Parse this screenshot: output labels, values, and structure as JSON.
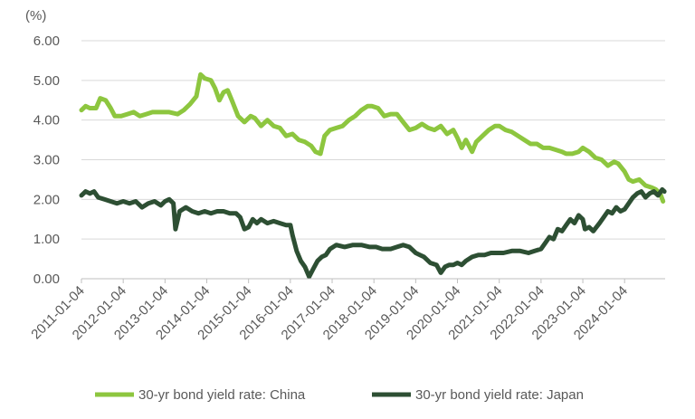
{
  "chart_data": {
    "type": "line",
    "title": "",
    "xlabel": "",
    "ylabel": "(%)",
    "ylim": [
      0,
      6
    ],
    "y_ticks": [
      "0.00",
      "1.00",
      "2.00",
      "3.00",
      "4.00",
      "5.00",
      "6.00"
    ],
    "x_range": [
      2011.0,
      2024.97
    ],
    "x_ticks": [
      {
        "value": 2011.0,
        "label": "2011-01-04"
      },
      {
        "value": 2012.0,
        "label": "2012-01-04"
      },
      {
        "value": 2013.0,
        "label": "2013-01-04"
      },
      {
        "value": 2014.0,
        "label": "2014-01-04"
      },
      {
        "value": 2015.0,
        "label": "2015-01-04"
      },
      {
        "value": 2016.0,
        "label": "2016-01-04"
      },
      {
        "value": 2017.0,
        "label": "2017-01-04"
      },
      {
        "value": 2018.0,
        "label": "2018-01-04"
      },
      {
        "value": 2019.0,
        "label": "2019-01-04"
      },
      {
        "value": 2020.0,
        "label": "2020-01-04"
      },
      {
        "value": 2021.0,
        "label": "2021-01-04"
      },
      {
        "value": 2022.0,
        "label": "2022-01-04"
      },
      {
        "value": 2023.0,
        "label": "2023-01-04"
      },
      {
        "value": 2024.0,
        "label": "2024-01-04"
      }
    ],
    "grid": "horizontal",
    "legend_position": "bottom",
    "series": [
      {
        "name": "30-yr bond yield rate: China",
        "color": "#8dc63f",
        "points": [
          [
            2011.0,
            4.25
          ],
          [
            2011.1,
            4.35
          ],
          [
            2011.2,
            4.3
          ],
          [
            2011.35,
            4.3
          ],
          [
            2011.45,
            4.55
          ],
          [
            2011.58,
            4.5
          ],
          [
            2011.7,
            4.3
          ],
          [
            2011.8,
            4.1
          ],
          [
            2011.95,
            4.1
          ],
          [
            2012.1,
            4.15
          ],
          [
            2012.25,
            4.2
          ],
          [
            2012.4,
            4.1
          ],
          [
            2012.55,
            4.15
          ],
          [
            2012.7,
            4.2
          ],
          [
            2012.9,
            4.2
          ],
          [
            2013.1,
            4.2
          ],
          [
            2013.3,
            4.15
          ],
          [
            2013.45,
            4.25
          ],
          [
            2013.6,
            4.4
          ],
          [
            2013.75,
            4.6
          ],
          [
            2013.85,
            5.15
          ],
          [
            2013.95,
            5.05
          ],
          [
            2014.1,
            5.0
          ],
          [
            2014.2,
            4.8
          ],
          [
            2014.3,
            4.5
          ],
          [
            2014.4,
            4.7
          ],
          [
            2014.5,
            4.75
          ],
          [
            2014.6,
            4.5
          ],
          [
            2014.75,
            4.1
          ],
          [
            2014.9,
            3.95
          ],
          [
            2015.05,
            4.1
          ],
          [
            2015.15,
            4.05
          ],
          [
            2015.3,
            3.85
          ],
          [
            2015.45,
            4.0
          ],
          [
            2015.6,
            3.85
          ],
          [
            2015.75,
            3.8
          ],
          [
            2015.9,
            3.6
          ],
          [
            2016.05,
            3.65
          ],
          [
            2016.2,
            3.5
          ],
          [
            2016.35,
            3.45
          ],
          [
            2016.5,
            3.35
          ],
          [
            2016.6,
            3.2
          ],
          [
            2016.72,
            3.15
          ],
          [
            2016.82,
            3.6
          ],
          [
            2016.95,
            3.75
          ],
          [
            2017.1,
            3.8
          ],
          [
            2017.25,
            3.85
          ],
          [
            2017.4,
            4.0
          ],
          [
            2017.55,
            4.1
          ],
          [
            2017.7,
            4.25
          ],
          [
            2017.85,
            4.35
          ],
          [
            2017.95,
            4.35
          ],
          [
            2018.1,
            4.3
          ],
          [
            2018.25,
            4.1
          ],
          [
            2018.4,
            4.15
          ],
          [
            2018.55,
            4.15
          ],
          [
            2018.7,
            3.95
          ],
          [
            2018.85,
            3.75
          ],
          [
            2019.0,
            3.8
          ],
          [
            2019.15,
            3.9
          ],
          [
            2019.3,
            3.8
          ],
          [
            2019.45,
            3.75
          ],
          [
            2019.6,
            3.85
          ],
          [
            2019.75,
            3.65
          ],
          [
            2019.9,
            3.75
          ],
          [
            2020.0,
            3.55
          ],
          [
            2020.1,
            3.3
          ],
          [
            2020.2,
            3.5
          ],
          [
            2020.35,
            3.2
          ],
          [
            2020.45,
            3.45
          ],
          [
            2020.6,
            3.6
          ],
          [
            2020.75,
            3.75
          ],
          [
            2020.9,
            3.85
          ],
          [
            2021.0,
            3.85
          ],
          [
            2021.15,
            3.75
          ],
          [
            2021.3,
            3.7
          ],
          [
            2021.45,
            3.6
          ],
          [
            2021.6,
            3.5
          ],
          [
            2021.75,
            3.4
          ],
          [
            2021.9,
            3.4
          ],
          [
            2022.05,
            3.3
          ],
          [
            2022.2,
            3.3
          ],
          [
            2022.35,
            3.25
          ],
          [
            2022.5,
            3.2
          ],
          [
            2022.6,
            3.15
          ],
          [
            2022.75,
            3.15
          ],
          [
            2022.9,
            3.2
          ],
          [
            2023.0,
            3.3
          ],
          [
            2023.15,
            3.2
          ],
          [
            2023.3,
            3.05
          ],
          [
            2023.45,
            3.0
          ],
          [
            2023.6,
            2.85
          ],
          [
            2023.75,
            2.95
          ],
          [
            2023.85,
            2.9
          ],
          [
            2024.0,
            2.7
          ],
          [
            2024.1,
            2.5
          ],
          [
            2024.2,
            2.45
          ],
          [
            2024.35,
            2.5
          ],
          [
            2024.5,
            2.35
          ],
          [
            2024.65,
            2.3
          ],
          [
            2024.75,
            2.25
          ],
          [
            2024.85,
            2.15
          ],
          [
            2024.92,
            1.95
          ]
        ]
      },
      {
        "name": "30-yr bond yield rate: Japan",
        "color": "#2d4f33",
        "points": [
          [
            2011.0,
            2.1
          ],
          [
            2011.1,
            2.2
          ],
          [
            2011.2,
            2.15
          ],
          [
            2011.3,
            2.2
          ],
          [
            2011.4,
            2.05
          ],
          [
            2011.55,
            2.0
          ],
          [
            2011.7,
            1.95
          ],
          [
            2011.85,
            1.9
          ],
          [
            2012.0,
            1.95
          ],
          [
            2012.15,
            1.9
          ],
          [
            2012.3,
            1.95
          ],
          [
            2012.45,
            1.8
          ],
          [
            2012.6,
            1.9
          ],
          [
            2012.75,
            1.95
          ],
          [
            2012.9,
            1.85
          ],
          [
            2013.0,
            1.95
          ],
          [
            2013.1,
            2.0
          ],
          [
            2013.2,
            1.9
          ],
          [
            2013.25,
            1.25
          ],
          [
            2013.35,
            1.7
          ],
          [
            2013.5,
            1.8
          ],
          [
            2013.65,
            1.7
          ],
          [
            2013.8,
            1.65
          ],
          [
            2013.95,
            1.7
          ],
          [
            2014.1,
            1.65
          ],
          [
            2014.25,
            1.7
          ],
          [
            2014.4,
            1.7
          ],
          [
            2014.55,
            1.65
          ],
          [
            2014.7,
            1.65
          ],
          [
            2014.8,
            1.55
          ],
          [
            2014.9,
            1.25
          ],
          [
            2015.0,
            1.3
          ],
          [
            2015.1,
            1.5
          ],
          [
            2015.2,
            1.4
          ],
          [
            2015.3,
            1.5
          ],
          [
            2015.45,
            1.4
          ],
          [
            2015.6,
            1.45
          ],
          [
            2015.75,
            1.4
          ],
          [
            2015.9,
            1.35
          ],
          [
            2016.0,
            1.35
          ],
          [
            2016.05,
            1.1
          ],
          [
            2016.15,
            0.7
          ],
          [
            2016.25,
            0.45
          ],
          [
            2016.35,
            0.3
          ],
          [
            2016.45,
            0.05
          ],
          [
            2016.55,
            0.25
          ],
          [
            2016.65,
            0.45
          ],
          [
            2016.75,
            0.55
          ],
          [
            2016.85,
            0.6
          ],
          [
            2016.95,
            0.75
          ],
          [
            2017.1,
            0.85
          ],
          [
            2017.3,
            0.8
          ],
          [
            2017.5,
            0.85
          ],
          [
            2017.7,
            0.85
          ],
          [
            2017.9,
            0.8
          ],
          [
            2018.05,
            0.8
          ],
          [
            2018.2,
            0.75
          ],
          [
            2018.4,
            0.75
          ],
          [
            2018.55,
            0.8
          ],
          [
            2018.7,
            0.85
          ],
          [
            2018.85,
            0.8
          ],
          [
            2019.0,
            0.65
          ],
          [
            2019.1,
            0.6
          ],
          [
            2019.2,
            0.55
          ],
          [
            2019.35,
            0.4
          ],
          [
            2019.5,
            0.35
          ],
          [
            2019.6,
            0.15
          ],
          [
            2019.7,
            0.3
          ],
          [
            2019.8,
            0.35
          ],
          [
            2019.9,
            0.35
          ],
          [
            2020.0,
            0.4
          ],
          [
            2020.1,
            0.35
          ],
          [
            2020.2,
            0.45
          ],
          [
            2020.35,
            0.55
          ],
          [
            2020.5,
            0.6
          ],
          [
            2020.65,
            0.6
          ],
          [
            2020.8,
            0.65
          ],
          [
            2020.95,
            0.65
          ],
          [
            2021.1,
            0.65
          ],
          [
            2021.3,
            0.7
          ],
          [
            2021.5,
            0.7
          ],
          [
            2021.7,
            0.65
          ],
          [
            2021.85,
            0.7
          ],
          [
            2022.0,
            0.75
          ],
          [
            2022.1,
            0.9
          ],
          [
            2022.2,
            1.05
          ],
          [
            2022.3,
            1.0
          ],
          [
            2022.4,
            1.25
          ],
          [
            2022.5,
            1.2
          ],
          [
            2022.6,
            1.35
          ],
          [
            2022.7,
            1.5
          ],
          [
            2022.8,
            1.4
          ],
          [
            2022.9,
            1.6
          ],
          [
            2023.0,
            1.5
          ],
          [
            2023.05,
            1.25
          ],
          [
            2023.15,
            1.3
          ],
          [
            2023.25,
            1.2
          ],
          [
            2023.4,
            1.4
          ],
          [
            2023.5,
            1.55
          ],
          [
            2023.6,
            1.7
          ],
          [
            2023.7,
            1.65
          ],
          [
            2023.8,
            1.8
          ],
          [
            2023.9,
            1.7
          ],
          [
            2024.0,
            1.75
          ],
          [
            2024.1,
            1.9
          ],
          [
            2024.2,
            2.05
          ],
          [
            2024.3,
            2.15
          ],
          [
            2024.4,
            2.2
          ],
          [
            2024.5,
            2.05
          ],
          [
            2024.6,
            2.15
          ],
          [
            2024.7,
            2.2
          ],
          [
            2024.8,
            2.1
          ],
          [
            2024.9,
            2.25
          ],
          [
            2024.95,
            2.2
          ]
        ]
      }
    ]
  }
}
